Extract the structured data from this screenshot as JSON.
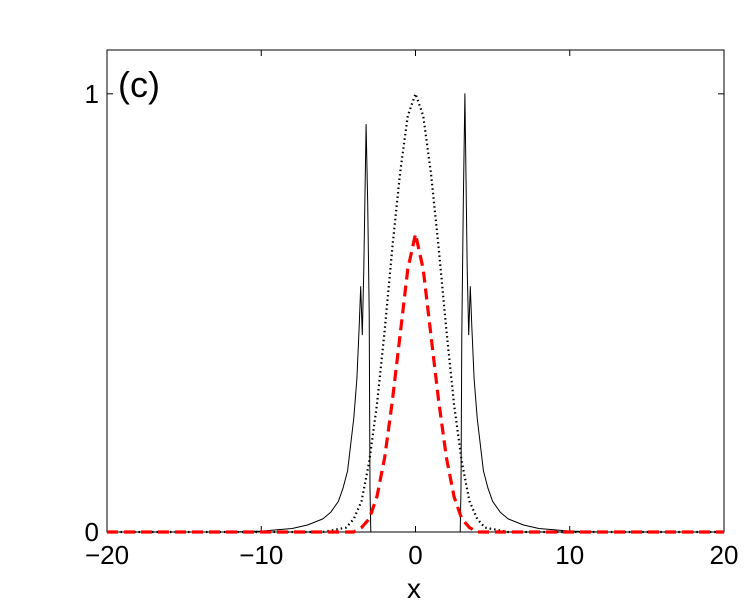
{
  "chart_data": {
    "type": "line",
    "panel_label": "(c)",
    "xlabel": "x",
    "ylabel": "",
    "xlim": [
      -20,
      20
    ],
    "ylim": [
      0,
      1.1
    ],
    "x_ticks": [
      -20,
      -10,
      0,
      10,
      20
    ],
    "x_tick_labels": [
      "−20",
      "−10",
      "0",
      "10",
      "20"
    ],
    "y_ticks": [
      0,
      1
    ],
    "y_tick_labels": [
      "0",
      "1"
    ],
    "grid": false,
    "legend": "none",
    "series": [
      {
        "style": "solid",
        "color": "#000000",
        "x": [
          -20,
          -15,
          -12,
          -10,
          -8,
          -7,
          -6,
          -5.5,
          -5,
          -4.7,
          -4.4,
          -4.2,
          -4.0,
          -3.8,
          -3.65,
          -3.55,
          -3.45,
          -3.35,
          -3.2,
          -3.1,
          -3.0,
          -2.95,
          -2.9,
          -2.5,
          0,
          2.5,
          2.9,
          2.95,
          3.0,
          3.1,
          3.2,
          3.35,
          3.45,
          3.55,
          3.65,
          3.8,
          4.0,
          4.2,
          4.4,
          4.7,
          5,
          5.5,
          6,
          7,
          8,
          10,
          12,
          15,
          20
        ],
        "y": [
          0.0,
          0.0,
          0.0,
          0.002,
          0.008,
          0.016,
          0.03,
          0.045,
          0.07,
          0.1,
          0.14,
          0.2,
          0.26,
          0.35,
          0.47,
          0.56,
          0.45,
          0.6,
          0.93,
          0.75,
          0.5,
          0.1,
          0.0,
          0.0,
          0.0,
          0.0,
          0.0,
          0.1,
          0.45,
          0.75,
          1.0,
          0.6,
          0.45,
          0.56,
          0.47,
          0.35,
          0.26,
          0.2,
          0.14,
          0.1,
          0.07,
          0.045,
          0.03,
          0.016,
          0.008,
          0.002,
          0.0,
          0.0,
          0.0
        ]
      },
      {
        "style": "dotted",
        "color": "#000000",
        "x": [
          -20,
          -6,
          -4.5,
          -4.0,
          -3.5,
          -3.0,
          -2.5,
          -2.0,
          -1.5,
          -1.0,
          -0.5,
          0,
          0.5,
          1.0,
          1.5,
          2.0,
          2.5,
          3.0,
          3.5,
          4.0,
          4.5,
          6,
          20
        ],
        "y": [
          0.0,
          0.0,
          0.01,
          0.03,
          0.07,
          0.16,
          0.29,
          0.46,
          0.65,
          0.82,
          0.95,
          1.0,
          0.95,
          0.82,
          0.65,
          0.46,
          0.29,
          0.16,
          0.07,
          0.03,
          0.01,
          0.0,
          0.0
        ]
      },
      {
        "style": "dashed",
        "color": "#ff0000",
        "x": [
          -20,
          -5,
          -4.0,
          -3.5,
          -3.0,
          -2.5,
          -2.0,
          -1.5,
          -1.0,
          -0.5,
          0,
          0.5,
          1.0,
          1.5,
          2.0,
          2.5,
          3.0,
          3.5,
          4.0,
          5,
          20
        ],
        "y": [
          0.0,
          0.0,
          0.0,
          0.01,
          0.03,
          0.08,
          0.17,
          0.3,
          0.45,
          0.6,
          0.68,
          0.6,
          0.45,
          0.3,
          0.17,
          0.08,
          0.03,
          0.01,
          0.0,
          0.0,
          0.0
        ]
      }
    ]
  }
}
